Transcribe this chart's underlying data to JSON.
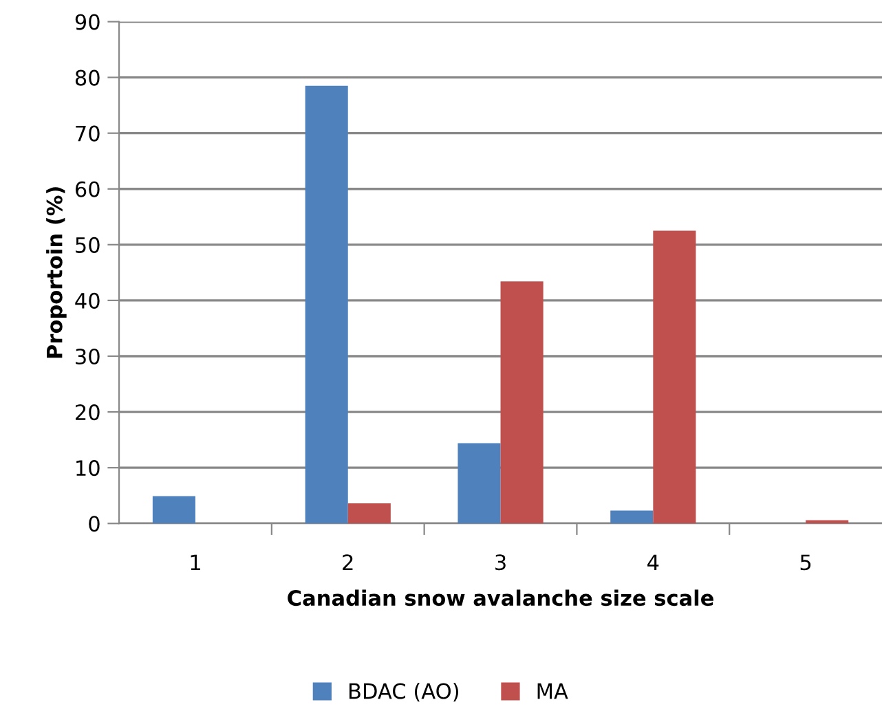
{
  "chart_data": {
    "type": "bar",
    "xlabel": "Canadian snow avalanche size scale",
    "ylabel": "Proportoin (%)",
    "categories": [
      "1",
      "2",
      "3",
      "4",
      "5"
    ],
    "series": [
      {
        "name": "BDAC (AO)",
        "color": "#4f81bd",
        "values": [
          4.9,
          78.5,
          14.4,
          2.3,
          0
        ]
      },
      {
        "name": "MA",
        "color": "#c0504d",
        "values": [
          0,
          3.6,
          43.4,
          52.5,
          0.6
        ]
      }
    ],
    "ylim": [
      0,
      90
    ],
    "yticks": [
      0,
      10,
      20,
      30,
      40,
      50,
      60,
      70,
      80,
      90
    ],
    "grid": "y",
    "legend": "bottom"
  }
}
